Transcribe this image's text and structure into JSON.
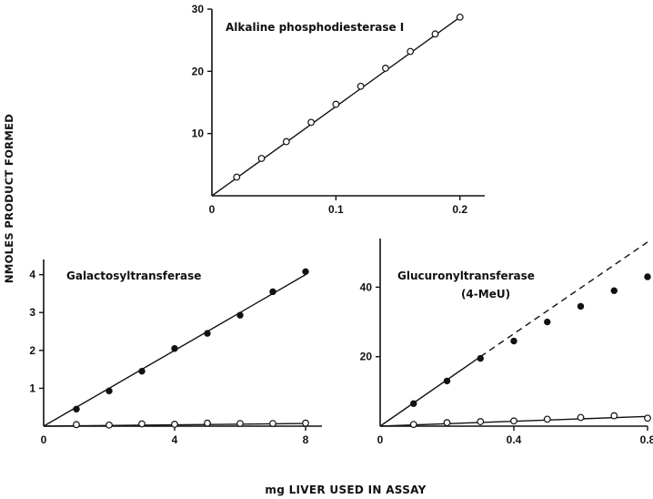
{
  "ylabel": "NMOLES PRODUCT FORMED",
  "xlabel": "mg LIVER USED IN ASSAY",
  "chart_data": [
    {
      "type": "scatter",
      "title": "Alkaline phosphodiesterase I",
      "subtitle": "",
      "xlim": [
        0,
        0.22
      ],
      "ylim": [
        0,
        30
      ],
      "xticks": [
        0,
        0.1,
        0.2
      ],
      "xtick_labels": [
        "0",
        "0.1",
        "0.2"
      ],
      "yticks": [
        10,
        20,
        30
      ],
      "ytick_labels": [
        "10",
        "20",
        "30"
      ],
      "series": [
        {
          "marker": "open",
          "x": [
            0.02,
            0.04,
            0.06,
            0.08,
            0.1,
            0.12,
            0.14,
            0.16,
            0.18,
            0.2
          ],
          "y": [
            3,
            6,
            8.7,
            11.8,
            14.7,
            17.6,
            20.5,
            23.2,
            26,
            28.7
          ],
          "fit": {
            "x": [
              0,
              0.2
            ],
            "y": [
              0,
              28.7
            ],
            "style": "solid"
          }
        }
      ]
    },
    {
      "type": "scatter",
      "title": "Galactosyltransferase",
      "subtitle": "",
      "xlim": [
        0,
        8.5
      ],
      "ylim": [
        0,
        4.4
      ],
      "xticks": [
        0,
        4,
        8
      ],
      "xtick_labels": [
        "0",
        "4",
        "8"
      ],
      "yticks": [
        1,
        2,
        3,
        4
      ],
      "ytick_labels": [
        "1",
        "2",
        "3",
        "4"
      ],
      "series": [
        {
          "marker": "filled",
          "x": [
            1,
            2,
            3,
            4,
            5,
            6,
            7,
            8
          ],
          "y": [
            0.45,
            0.93,
            1.45,
            2.05,
            2.45,
            2.93,
            3.55,
            4.08
          ],
          "fit": {
            "x": [
              0,
              8
            ],
            "y": [
              0,
              4.0
            ],
            "style": "solid"
          }
        },
        {
          "marker": "open",
          "x": [
            1,
            2,
            3,
            4,
            5,
            6,
            7,
            8
          ],
          "y": [
            0.04,
            0.03,
            0.06,
            0.05,
            0.08,
            0.07,
            0.07,
            0.08
          ],
          "fit": {
            "x": [
              0,
              8
            ],
            "y": [
              0,
              0.07
            ],
            "style": "solid"
          }
        }
      ]
    },
    {
      "type": "scatter",
      "title": "Glucuronyltransferase",
      "subtitle": "(4-MeU)",
      "xlim": [
        0,
        0.8
      ],
      "ylim": [
        0,
        54
      ],
      "xticks": [
        0,
        0.4,
        0.8
      ],
      "xtick_labels": [
        "0",
        "0.4",
        "0.8"
      ],
      "yticks": [
        20,
        40
      ],
      "ytick_labels": [
        "20",
        "40"
      ],
      "series": [
        {
          "marker": "filled",
          "x": [
            0.1,
            0.2,
            0.3,
            0.4,
            0.5,
            0.6,
            0.7,
            0.8
          ],
          "y": [
            6.5,
            13,
            19.5,
            24.5,
            30,
            34.5,
            39,
            43
          ],
          "fit": {
            "x": [
              0,
              0.3
            ],
            "y": [
              0,
              20
            ],
            "style": "solid"
          },
          "extrapolation": {
            "x": [
              0.3,
              0.8
            ],
            "y": [
              20,
              53
            ],
            "style": "dashed"
          }
        },
        {
          "marker": "open",
          "x": [
            0.1,
            0.2,
            0.3,
            0.4,
            0.5,
            0.6,
            0.7,
            0.8
          ],
          "y": [
            0.5,
            1,
            1.3,
            1.5,
            2,
            2.5,
            3,
            2.3
          ],
          "fit": {
            "x": [
              0,
              0.8
            ],
            "y": [
              0,
              2.8
            ],
            "style": "solid"
          }
        }
      ]
    }
  ]
}
